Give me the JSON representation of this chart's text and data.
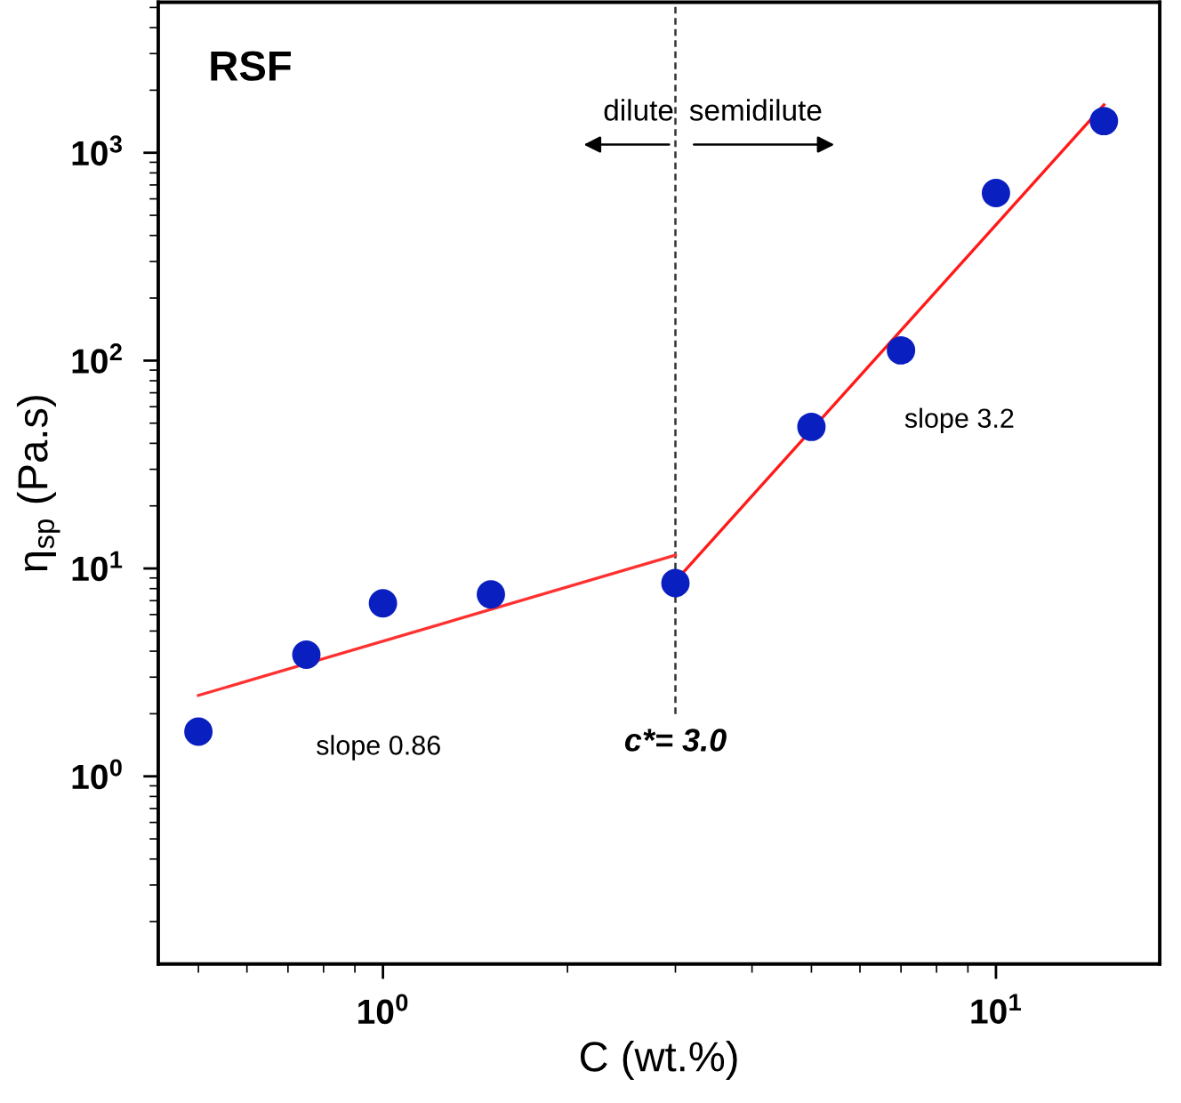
{
  "chart_data": {
    "type": "scatter",
    "xlabel": "C (wt.%)",
    "ylabel": "η$_{sp}$ (Pa.s)",
    "log": "xy",
    "grid": false,
    "legend": false,
    "xlim": [
      0.43,
      18.5
    ],
    "ylim": [
      0.125,
      5300
    ],
    "xticks": [
      {
        "value": 1,
        "label": "10$^{0}$"
      },
      {
        "value": 10,
        "label": "10$^{1}$"
      }
    ],
    "yticks": [
      {
        "value": 1,
        "label": "10$^{0}$"
      },
      {
        "value": 10,
        "label": "10$^{1}$"
      },
      {
        "value": 100,
        "label": "10$^{2}$"
      },
      {
        "value": 1000,
        "label": "10$^{3}$"
      }
    ],
    "x": [
      0.5,
      0.75,
      1,
      1.5,
      3,
      5,
      7,
      10,
      15
    ],
    "series": [
      {
        "marker": "circle",
        "color": "#0a1fc0",
        "values": [
          1.64,
          3.85,
          6.8,
          7.5,
          8.5,
          48,
          112,
          640,
          1420
        ]
      },
      {
        "type": "line",
        "color": "#ff3030",
        "x": [
          0.5,
          3
        ],
        "values": [
          2.45,
          11.6
        ]
      },
      {
        "type": "line",
        "color": "#ff1a1a",
        "x": [
          3,
          15
        ],
        "values": [
          8.7,
          1700
        ]
      }
    ],
    "ref_lines": [
      {
        "axis": "x",
        "value": 3,
        "label": "c*= 3.0",
        "color": "#333333",
        "line_style": "dashed"
      }
    ],
    "annotations": [
      "RSF",
      "dilute",
      "semidilute",
      "slope 0.86",
      "slope 3.2"
    ]
  }
}
